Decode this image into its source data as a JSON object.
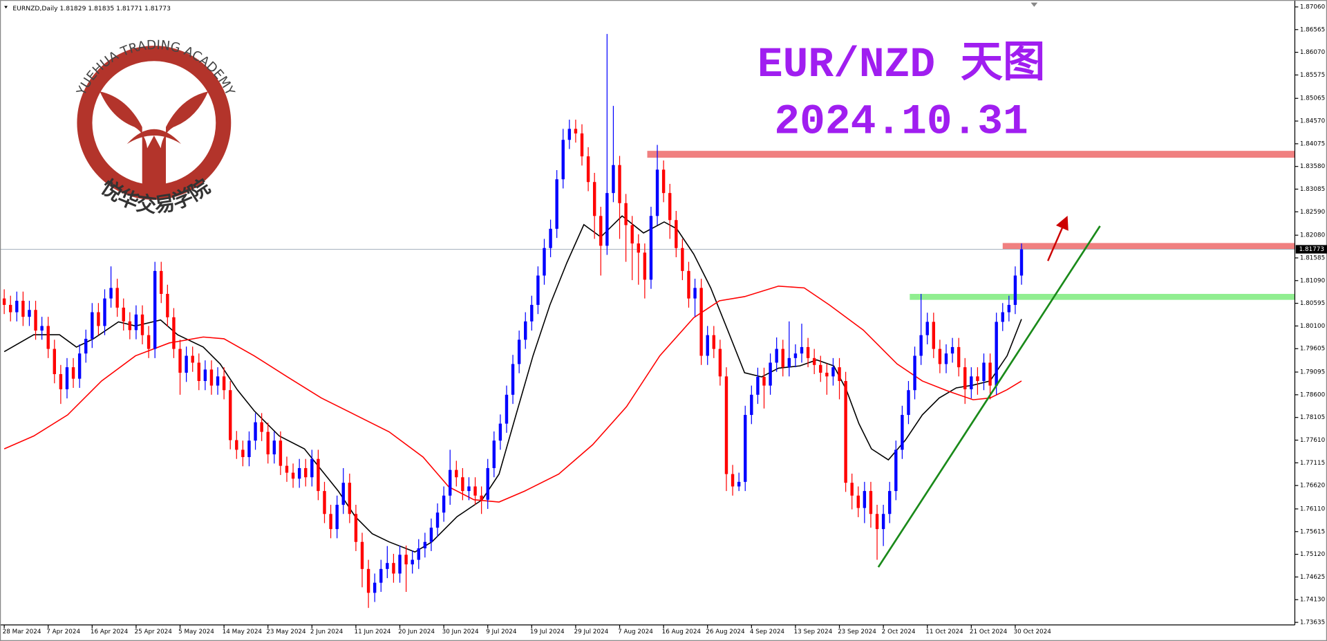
{
  "header": "EURNZD,Daily  1.81829 1.81835 1.81771 1.81773",
  "logo": {
    "text": "YUEHUA TRADING ACADEMY",
    "chinese": "悦华交易学院"
  },
  "chart_data": {
    "type": "candlestick",
    "title": "EUR/NZD 天图",
    "subtitle": "2024.10.31",
    "up_color": "#0000ff",
    "down_color": "#ff0000",
    "ylim": [
      1.7358,
      1.8721
    ],
    "yticks": [
      {
        "value": 1.8706,
        "label": "1.87060"
      },
      1.86565,
      {
        "value": 1.8607,
        "label": "1.86070"
      },
      1.85575,
      1.85065,
      {
        "value": 1.8457,
        "label": "1.84570"
      },
      1.84075,
      {
        "value": 1.8358,
        "label": "1.83580"
      },
      1.83085,
      {
        "value": 1.8259,
        "label": "1.82590"
      },
      {
        "value": 1.8208,
        "label": "1.82080"
      },
      1.81585,
      {
        "value": 1.8109,
        "label": "1.81090"
      },
      1.80595,
      {
        "value": 1.801,
        "label": "1.80100"
      },
      1.79605,
      1.79095,
      {
        "value": 1.786,
        "label": "1.78600"
      },
      1.78105,
      {
        "value": 1.7761,
        "label": "1.77610"
      },
      1.77115,
      {
        "value": 1.7662,
        "label": "1.76620"
      },
      {
        "value": 1.7611,
        "label": "1.76110"
      },
      1.75615,
      {
        "value": 1.7512,
        "label": "1.75120"
      },
      1.74625,
      {
        "value": 1.7413,
        "label": "1.74130"
      },
      1.73635
    ],
    "categories": [
      "28 Mar 2024",
      null,
      null,
      null,
      null,
      null,
      null,
      "7 Apr 2024",
      null,
      null,
      null,
      null,
      null,
      null,
      "16 Apr 2024",
      null,
      null,
      null,
      null,
      null,
      null,
      "25 Apr 2024",
      null,
      null,
      null,
      null,
      null,
      null,
      "5 May 2024",
      null,
      null,
      null,
      null,
      null,
      null,
      "14 May 2024",
      null,
      null,
      null,
      null,
      null,
      null,
      "23 May 2024",
      null,
      null,
      null,
      null,
      null,
      null,
      "2 Jun 2024",
      null,
      null,
      null,
      null,
      null,
      null,
      "11 Jun 2024",
      null,
      null,
      null,
      null,
      null,
      null,
      "20 Jun 2024",
      null,
      null,
      null,
      null,
      null,
      null,
      "30 Jun 2024",
      null,
      null,
      null,
      null,
      null,
      null,
      "9 Jul 2024",
      null,
      null,
      null,
      null,
      null,
      null,
      "19 Jul 2024",
      null,
      null,
      null,
      null,
      null,
      null,
      "29 Jul 2024",
      null,
      null,
      null,
      null,
      null,
      null,
      "7 Aug 2024",
      null,
      null,
      null,
      null,
      null,
      null,
      "16 Aug 2024",
      null,
      null,
      null,
      null,
      null,
      null,
      "26 Aug 2024",
      null,
      null,
      null,
      null,
      null,
      null,
      "4 Sep 2024",
      null,
      null,
      null,
      null,
      null,
      null,
      "13 Sep 2024",
      null,
      null,
      null,
      null,
      null,
      null,
      "23 Sep 2024",
      null,
      null,
      null,
      null,
      null,
      null,
      "2 Oct 2024",
      null,
      null,
      null,
      null,
      null,
      null,
      "11 Oct 2024",
      null,
      null,
      null,
      null,
      null,
      null,
      "21 Oct 2024",
      null,
      null,
      null,
      null,
      null,
      null,
      "30 Oct 2024",
      null
    ],
    "open": [
      1.807,
      1.8056,
      1.804,
      1.8065,
      1.803,
      1.8045,
      1.8,
      1.801,
      1.796,
      1.7905,
      1.7872,
      1.792,
      1.7895,
      1.795,
      1.7982,
      1.804,
      1.801,
      1.807,
      1.8093,
      1.805,
      1.802,
      1.8001,
      1.8035,
      1.799,
      1.796,
      1.813,
      1.808,
      1.8029,
      1.796,
      1.7908,
      1.7945,
      1.793,
      1.789,
      1.7915,
      1.788,
      1.79,
      1.787,
      1.7761,
      1.774,
      1.7724,
      1.776,
      1.78,
      1.7779,
      1.773,
      1.776,
      1.7705,
      1.769,
      1.7677,
      1.77,
      1.768,
      1.772,
      1.765,
      1.76,
      1.7567,
      1.762,
      1.7668,
      1.76,
      1.7539,
      1.748,
      1.7428,
      1.745,
      1.748,
      1.7493,
      1.747,
      1.7511,
      1.749,
      1.75,
      1.7525,
      1.7539,
      1.757,
      1.7603,
      1.764,
      1.7696,
      1.768,
      1.765,
      1.766,
      1.764,
      1.7631,
      1.77,
      1.776,
      1.7797,
      1.786,
      1.7927,
      1.798,
      1.802,
      1.8056,
      1.812,
      1.818,
      1.8222,
      1.833,
      1.8416,
      1.844,
      1.843,
      1.838,
      1.8324,
      1.825,
      1.8185,
      1.83,
      1.8361,
      1.8278,
      1.823,
      1.819,
      1.817,
      1.8111,
      1.825,
      1.8351,
      1.83,
      1.8241,
      1.818,
      1.813,
      1.807,
      1.8093,
      1.7945,
      1.799,
      1.796,
      1.79,
      1.7687,
      1.766,
      1.767,
      1.7816,
      1.786,
      1.7899,
      1.788,
      1.793,
      1.796,
      1.792,
      1.794,
      1.795,
      1.7964,
      1.794,
      1.7925,
      1.7908,
      1.79,
      1.792,
      1.789,
      1.7668,
      1.764,
      1.7613,
      1.765,
      1.76,
      1.7567,
      1.76,
      1.765,
      1.774,
      1.7816,
      1.787,
      1.7945,
      1.799,
      1.8019,
      1.796,
      1.7927,
      1.795,
      1.7964,
      1.792,
      1.7872,
      1.79,
      1.789,
      1.793,
      1.788,
      1.8019,
      1.804,
      1.8056,
      1.812
    ],
    "high": [
      1.809,
      1.8076,
      1.8085,
      1.8085,
      1.8065,
      1.8065,
      1.803,
      1.803,
      1.798,
      1.7925,
      1.794,
      1.794,
      1.797,
      1.8002,
      1.806,
      1.806,
      1.809,
      1.814,
      1.8113,
      1.807,
      1.804,
      1.8055,
      1.8055,
      1.801,
      1.815,
      1.815,
      1.81,
      1.8049,
      1.798,
      1.7965,
      1.7965,
      1.795,
      1.7935,
      1.7935,
      1.792,
      1.792,
      1.789,
      1.7781,
      1.776,
      1.778,
      1.782,
      1.782,
      1.7799,
      1.778,
      1.778,
      1.7725,
      1.771,
      1.772,
      1.772,
      1.774,
      1.774,
      1.767,
      1.762,
      1.764,
      1.77,
      1.7688,
      1.762,
      1.7559,
      1.75,
      1.747,
      1.75,
      1.753,
      1.7513,
      1.7531,
      1.7531,
      1.752,
      1.7545,
      1.7559,
      1.759,
      1.7623,
      1.766,
      1.774,
      1.7716,
      1.77,
      1.768,
      1.768,
      1.766,
      1.772,
      1.778,
      1.7817,
      1.788,
      1.7947,
      1.8,
      1.804,
      1.8076,
      1.814,
      1.82,
      1.8242,
      1.835,
      1.844,
      1.846,
      1.846,
      1.845,
      1.84,
      1.8344,
      1.827,
      1.8647,
      1.849,
      1.8381,
      1.8298,
      1.825,
      1.821,
      1.819,
      1.827,
      1.8405,
      1.8371,
      1.832,
      1.8261,
      1.82,
      1.815,
      1.8113,
      1.8113,
      1.801,
      1.801,
      1.798,
      1.792,
      1.7707,
      1.769,
      1.7836,
      1.788,
      1.7919,
      1.7919,
      1.795,
      1.7985,
      1.798,
      1.802,
      1.797,
      1.8015,
      1.7984,
      1.796,
      1.7945,
      1.7928,
      1.794,
      1.794,
      1.791,
      1.7688,
      1.766,
      1.767,
      1.767,
      1.762,
      1.762,
      1.767,
      1.776,
      1.7836,
      1.789,
      1.7965,
      1.808,
      1.8039,
      1.8039,
      1.798,
      1.797,
      1.7984,
      1.7984,
      1.794,
      1.792,
      1.792,
      1.795,
      1.795,
      1.8039,
      1.806,
      1.8076,
      1.814,
      1.819
    ],
    "low": [
      1.8036,
      1.802,
      1.802,
      1.801,
      1.801,
      1.798,
      1.798,
      1.794,
      1.7885,
      1.784,
      1.7852,
      1.7875,
      1.7875,
      1.793,
      1.7962,
      1.799,
      1.799,
      1.805,
      1.803,
      1.8,
      1.7981,
      1.7981,
      1.797,
      1.794,
      1.794,
      1.806,
      1.8009,
      1.794,
      1.786,
      1.7888,
      1.791,
      1.787,
      1.787,
      1.786,
      1.786,
      1.785,
      1.7741,
      1.772,
      1.7704,
      1.7704,
      1.774,
      1.7759,
      1.771,
      1.771,
      1.7685,
      1.767,
      1.7657,
      1.7657,
      1.766,
      1.766,
      1.763,
      1.758,
      1.7547,
      1.7547,
      1.76,
      1.758,
      1.7519,
      1.744,
      1.7395,
      1.7408,
      1.743,
      1.746,
      1.745,
      1.745,
      1.743,
      1.747,
      1.748,
      1.7505,
      1.7519,
      1.755,
      1.7583,
      1.762,
      1.766,
      1.763,
      1.763,
      1.762,
      1.76,
      1.7611,
      1.768,
      1.774,
      1.7777,
      1.784,
      1.7907,
      1.796,
      1.8,
      1.8036,
      1.81,
      1.816,
      1.8202,
      1.831,
      1.8396,
      1.841,
      1.836,
      1.8304,
      1.82,
      1.812,
      1.8165,
      1.828,
      1.82,
      1.815,
      1.811,
      1.81,
      1.807,
      1.8091,
      1.823,
      1.828,
      1.82,
      1.816,
      1.811,
      1.805,
      1.803,
      1.7925,
      1.7925,
      1.794,
      1.788,
      1.765,
      1.764,
      1.765,
      1.765,
      1.7796,
      1.784,
      1.783,
      1.786,
      1.791,
      1.79,
      1.79,
      1.792,
      1.793,
      1.792,
      1.7905,
      1.7888,
      1.786,
      1.788,
      1.785,
      1.7648,
      1.761,
      1.7593,
      1.758,
      1.757,
      1.75,
      1.753,
      1.758,
      1.763,
      1.772,
      1.7796,
      1.785,
      1.7925,
      1.797,
      1.794,
      1.7907,
      1.7907,
      1.793,
      1.79,
      1.784,
      1.7852,
      1.786,
      1.787,
      1.785,
      1.786,
      1.7999,
      1.802,
      1.8036,
      1.81
    ],
    "close": [
      1.8056,
      1.804,
      1.8065,
      1.803,
      1.8045,
      1.8,
      1.801,
      1.796,
      1.7905,
      1.7872,
      1.792,
      1.7895,
      1.795,
      1.7982,
      1.804,
      1.801,
      1.807,
      1.8093,
      1.805,
      1.802,
      1.8001,
      1.8035,
      1.799,
      1.796,
      1.813,
      1.808,
      1.8029,
      1.796,
      1.7908,
      1.7945,
      1.793,
      1.789,
      1.7915,
      1.788,
      1.79,
      1.787,
      1.7761,
      1.774,
      1.7724,
      1.776,
      1.78,
      1.7779,
      1.773,
      1.776,
      1.7705,
      1.769,
      1.7677,
      1.77,
      1.768,
      1.772,
      1.765,
      1.76,
      1.7567,
      1.762,
      1.7668,
      1.76,
      1.7539,
      1.748,
      1.7428,
      1.745,
      1.748,
      1.7493,
      1.747,
      1.7511,
      1.749,
      1.75,
      1.7525,
      1.7539,
      1.757,
      1.7603,
      1.764,
      1.7696,
      1.768,
      1.765,
      1.766,
      1.764,
      1.7631,
      1.77,
      1.776,
      1.7797,
      1.786,
      1.7927,
      1.798,
      1.802,
      1.8056,
      1.812,
      1.818,
      1.8222,
      1.833,
      1.8416,
      1.844,
      1.843,
      1.838,
      1.8324,
      1.825,
      1.8185,
      1.83,
      1.8361,
      1.8278,
      1.823,
      1.819,
      1.817,
      1.8111,
      1.825,
      1.8351,
      1.83,
      1.8241,
      1.818,
      1.813,
      1.807,
      1.8093,
      1.7945,
      1.799,
      1.796,
      1.79,
      1.7687,
      1.766,
      1.767,
      1.7816,
      1.786,
      1.7899,
      1.788,
      1.793,
      1.796,
      1.792,
      1.794,
      1.795,
      1.7964,
      1.794,
      1.7925,
      1.7908,
      1.79,
      1.792,
      1.789,
      1.7668,
      1.764,
      1.7613,
      1.765,
      1.76,
      1.7567,
      1.76,
      1.765,
      1.774,
      1.7816,
      1.787,
      1.7945,
      1.799,
      1.8019,
      1.796,
      1.7927,
      1.795,
      1.7964,
      1.792,
      1.7872,
      1.79,
      1.789,
      1.793,
      1.788,
      1.8019,
      1.804,
      1.8056,
      1.812,
      1.81773
    ],
    "ma_lines": [
      {
        "color": "#000000",
        "x": [
          0,
          4.7,
          8.8,
          11.5,
          14.2,
          18.2,
          20.9,
          24.9,
          27.6,
          31.7,
          34.4,
          37.1,
          39.8,
          43.8,
          47.8,
          50.5,
          53.2,
          55.9,
          58.6,
          61.3,
          65.4,
          68.1,
          72.1,
          76.1,
          78.8,
          81.5,
          84.2,
          86.9,
          89.6,
          92.3,
          95,
          98.4,
          101.8,
          105.1,
          107.1,
          109.8,
          112.5,
          115.2,
          117.9,
          120.6,
          123.3,
          126.7,
          129.4,
          132.1,
          134.1,
          136.1,
          138.1,
          140.8,
          143.5,
          146.2,
          148.9,
          151.6,
          154.3,
          157,
          159.7,
          162
        ],
        "values": [
          1.7954,
          1.7991,
          1.7991,
          1.7964,
          1.7982,
          1.8019,
          1.801,
          1.8023,
          1.7991,
          1.7964,
          1.7927,
          1.7871,
          1.7825,
          1.777,
          1.7742,
          1.7696,
          1.765,
          1.7594,
          1.7557,
          1.7539,
          1.7517,
          1.7539,
          1.7594,
          1.7631,
          1.7687,
          1.7816,
          1.7945,
          1.8056,
          1.8148,
          1.8231,
          1.8204,
          1.825,
          1.8213,
          1.8237,
          1.8222,
          1.8167,
          1.8093,
          1.8001,
          1.7908,
          1.7899,
          1.7918,
          1.7923,
          1.7936,
          1.7923,
          1.7871,
          1.7797,
          1.7742,
          1.7718,
          1.7761,
          1.7816,
          1.7853,
          1.7875,
          1.7881,
          1.789,
          1.7945,
          1.8025
        ]
      },
      {
        "color": "#ff0000",
        "x": [
          0,
          4.7,
          10.1,
          15.5,
          20.9,
          26.3,
          31.7,
          35,
          39.8,
          45.1,
          50.5,
          55.9,
          61.3,
          66.7,
          70.8,
          74.8,
          78.8,
          82.9,
          88.3,
          93.7,
          99.1,
          104.4,
          109.8,
          113.9,
          117.9,
          123.3,
          127.4,
          131.4,
          136.8,
          142.2,
          146.2,
          150.3,
          154.3,
          157,
          159.7,
          162
        ],
        "values": [
          1.7742,
          1.777,
          1.7816,
          1.789,
          1.7945,
          1.7973,
          1.7986,
          1.7982,
          1.7945,
          1.7899,
          1.7853,
          1.7816,
          1.7779,
          1.7724,
          1.7659,
          1.7631,
          1.7626,
          1.765,
          1.7687,
          1.7751,
          1.7834,
          1.7945,
          1.8028,
          1.8065,
          1.8074,
          1.8097,
          1.8093,
          1.8056,
          1.8001,
          1.7927,
          1.789,
          1.7868,
          1.7849,
          1.7853,
          1.7871,
          1.789
        ]
      }
    ],
    "zones": [
      {
        "low": 1.8377,
        "high": 1.8392,
        "start": 102.4,
        "color": "#f08080"
      },
      {
        "low": 1.8178,
        "high": 1.8191,
        "start": 159,
        "color": "#f08080"
      },
      {
        "low": 1.8067,
        "high": 1.808,
        "start": 144.2,
        "color": "#90ee90"
      }
    ],
    "trendline": {
      "x": [
        139.2,
        174.5
      ],
      "y": [
        1.7484,
        1.8228
      ],
      "color": "#1a8a1a"
    },
    "arrow": {
      "x": [
        166.2,
        168.9
      ],
      "y": [
        1.8152,
        1.8237
      ],
      "color": "#cc0000"
    }
  }
}
